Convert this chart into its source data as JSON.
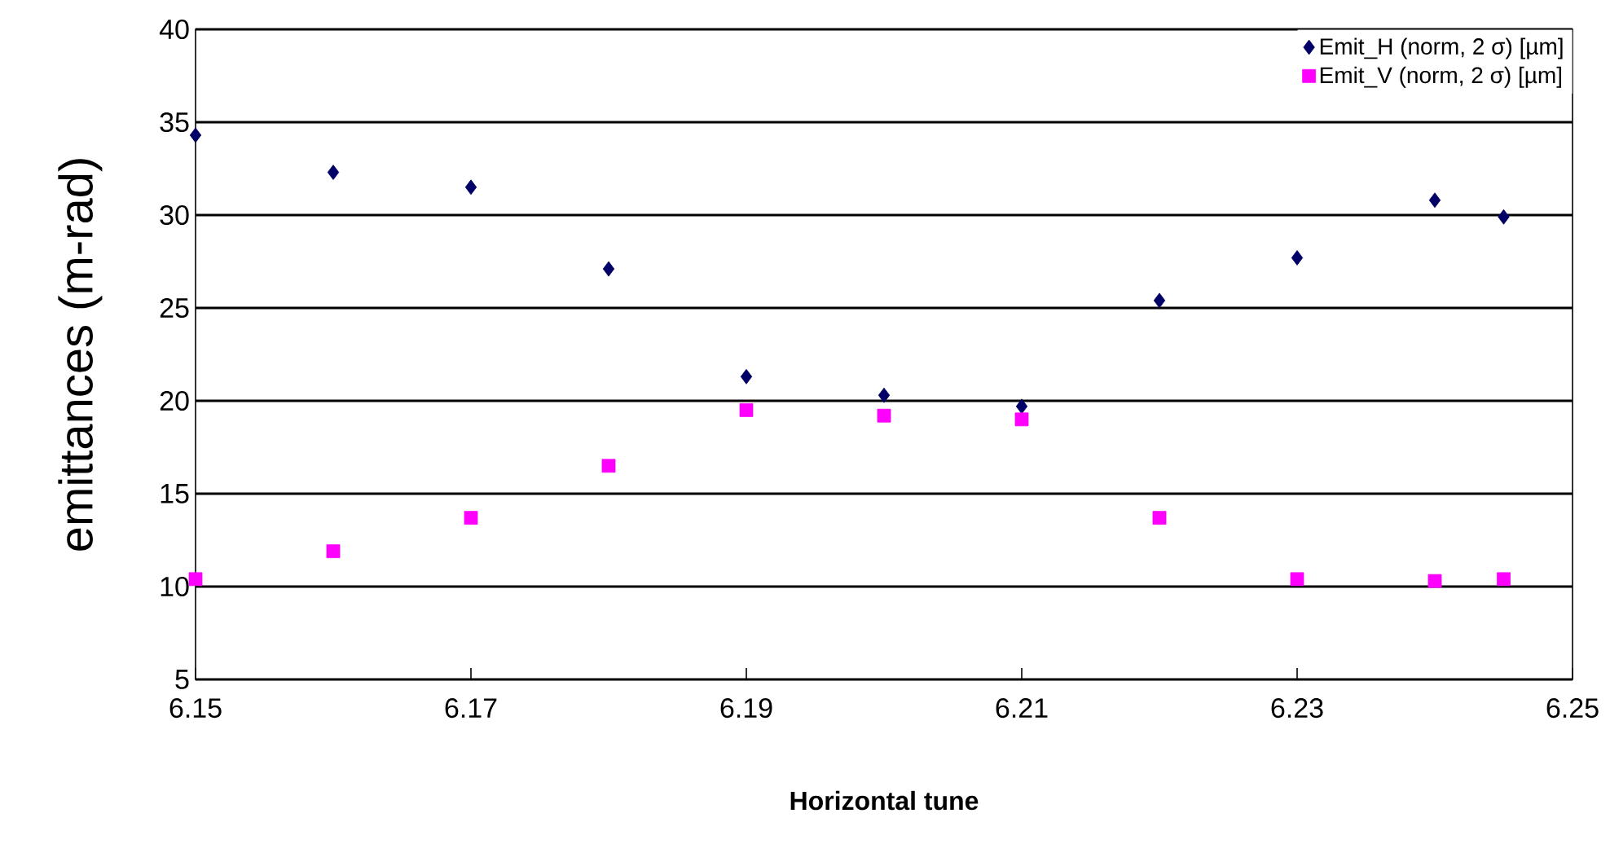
{
  "chart_data": {
    "type": "scatter",
    "xlabel": "Horizontal tune",
    "ylabel": "emittances (m-rad)",
    "x": [
      6.15,
      6.16,
      6.17,
      6.18,
      6.19,
      6.2,
      6.21,
      6.22,
      6.23,
      6.24,
      6.245
    ],
    "series": [
      {
        "name": "Emit_H (norm, 2 σ) [µm]",
        "color": "#000066",
        "marker": "diamond",
        "values": [
          34.3,
          32.3,
          31.5,
          27.1,
          21.3,
          20.3,
          19.7,
          25.4,
          27.7,
          30.8,
          29.9
        ]
      },
      {
        "name": "Emit_V (norm, 2 σ) [µm]",
        "color": "#ff00ff",
        "marker": "square",
        "values": [
          10.4,
          11.9,
          13.7,
          16.5,
          19.5,
          19.2,
          19.0,
          13.7,
          10.4,
          10.3,
          10.4
        ]
      }
    ],
    "xlim": [
      6.15,
      6.25
    ],
    "xticks": [
      6.15,
      6.17,
      6.19,
      6.21,
      6.23,
      6.25
    ],
    "ylim": [
      5,
      40
    ],
    "yticks": [
      5,
      10,
      15,
      20,
      25,
      30,
      35,
      40
    ],
    "grid": "y",
    "legend": "top right"
  }
}
